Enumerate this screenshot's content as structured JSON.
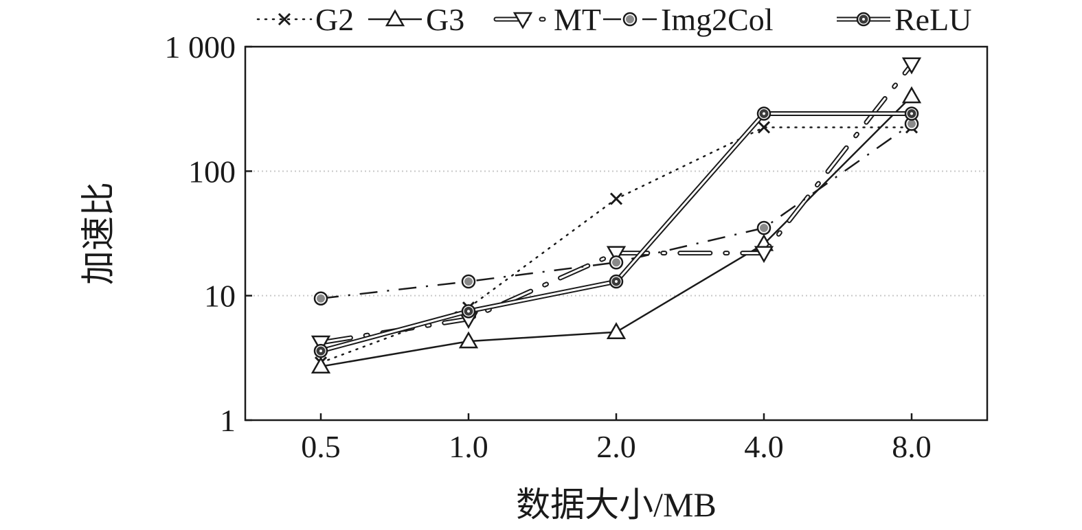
{
  "chart_data": {
    "type": "line",
    "xlabel": "数据大小/MB",
    "ylabel": "加速比",
    "x_scale": "categorical",
    "y_scale": "log",
    "ylim": [
      1,
      1000
    ],
    "categories": [
      "0.5",
      "1.0",
      "2.0",
      "4.0",
      "8.0"
    ],
    "y_tick_labels": [
      "1",
      "10",
      "100",
      "1 000"
    ],
    "y_tick_values": [
      1,
      10,
      100,
      1000
    ],
    "grid": "horizontal dotted at 10 and 100",
    "legend_position": "top",
    "series": [
      {
        "name": "G2",
        "values": [
          2.9,
          8,
          60,
          225,
          225
        ],
        "marker": "x",
        "line_style": "dotted"
      },
      {
        "name": "G3",
        "values": [
          2.7,
          4.3,
          5.1,
          26,
          400
        ],
        "marker": "triangle-up",
        "line_style": "solid"
      },
      {
        "name": "MT",
        "values": [
          4.2,
          6.5,
          22,
          22,
          720
        ],
        "marker": "triangle-down",
        "line_style": "double-dash-dot"
      },
      {
        "name": "Img2Col",
        "values": [
          9.5,
          13,
          18.5,
          35,
          240
        ],
        "marker": "circle-hatched",
        "line_style": "dash-dot"
      },
      {
        "name": "ReLU",
        "values": [
          3.6,
          7.5,
          13,
          290,
          290
        ],
        "marker": "circle-dotted",
        "line_style": "double"
      }
    ]
  }
}
